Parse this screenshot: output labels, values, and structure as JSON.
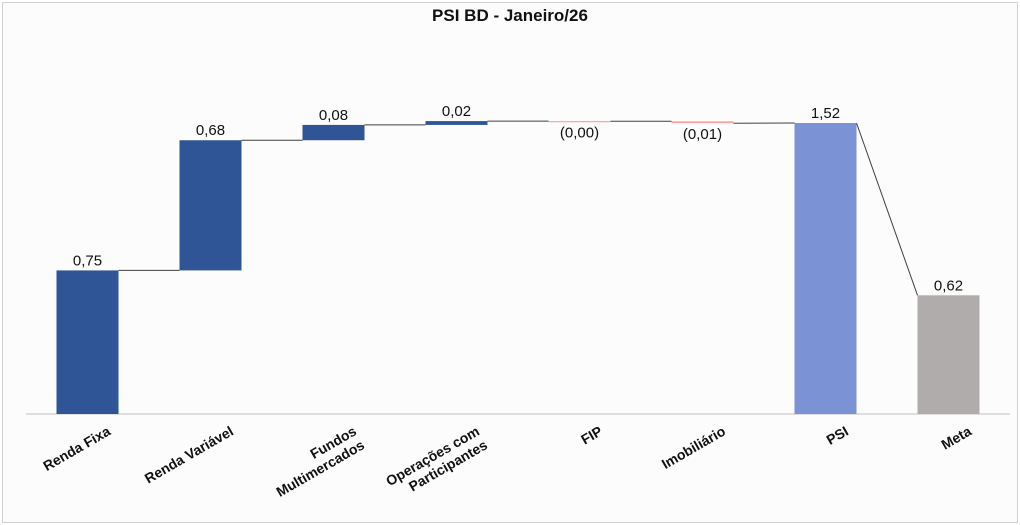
{
  "chart_data": {
    "type": "waterfall",
    "title": "PSI BD - Janeiro/26",
    "categories": [
      [
        "Renda Fixa"
      ],
      [
        "Renda Variável"
      ],
      [
        "Fundos",
        "Multimercados"
      ],
      [
        "Operações com",
        "Participantes"
      ],
      [
        "FIP"
      ],
      [
        "Imobiliário"
      ],
      [
        "PSI"
      ],
      [
        "Meta"
      ]
    ],
    "values": [
      0.75,
      0.68,
      0.08,
      0.02,
      -0.001,
      -0.01,
      1.52,
      0.62
    ],
    "labels": [
      "0,75",
      "0,68",
      "0,08",
      "0,02",
      "(0,00)",
      "(0,01)",
      "1,52",
      "0,62"
    ],
    "kinds": [
      "delta",
      "delta",
      "delta",
      "delta",
      "delta",
      "delta",
      "total",
      "total"
    ],
    "ylim": [
      0,
      1.6
    ],
    "colors": {
      "positive": "#2f5597",
      "negative": "#f4a6a6",
      "total": "#7b93d4",
      "target": "#b0acac",
      "connector": "#404040"
    },
    "grid": false,
    "legend": "none"
  }
}
